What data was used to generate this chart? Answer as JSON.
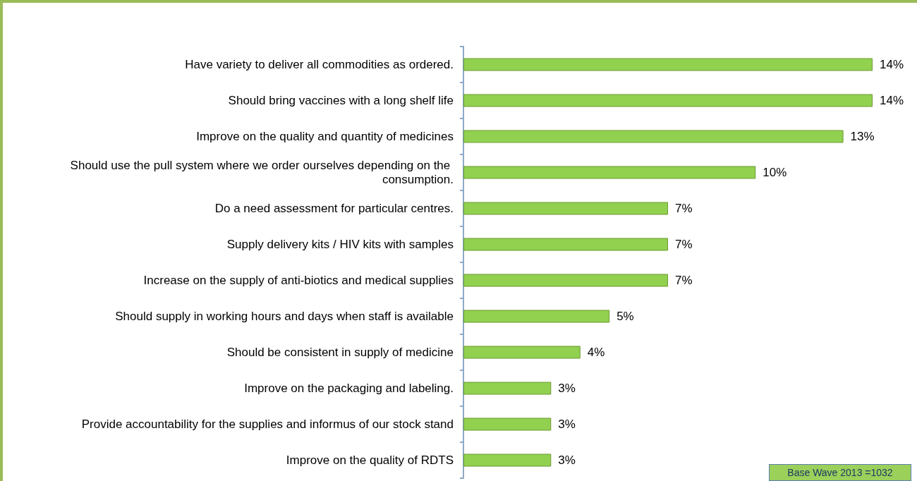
{
  "chart_data": {
    "type": "bar",
    "orientation": "horizontal",
    "categories": [
      "Have variety to deliver all commodities as ordered.",
      "Should bring vaccines with a long shelf life",
      "Improve on the quality and quantity of medicines",
      "Should use the pull system where we order ourselves depending on the consumption.",
      "Do a need assessment for particular centres.",
      "Supply delivery kits / HIV kits with samples",
      "Increase on the supply of anti-biotics and medical supplies",
      "Should supply in working hours and days when staff is available",
      "Should be consistent in supply of medicine",
      "Improve on the packaging and labeling.",
      "Provide accountability for the supplies and informus of our stock stand",
      "Improve on the quality of RDTS"
    ],
    "values": [
      14,
      14,
      13,
      10,
      7,
      7,
      7,
      5,
      4,
      3,
      3,
      3
    ],
    "value_labels": [
      "14%",
      "14%",
      "13%",
      "10%",
      "7%",
      "7%",
      "7%",
      "5%",
      "4%",
      "3%",
      "3%",
      "3%"
    ],
    "color": "#92d050",
    "grid": false,
    "annotations": [
      "Base Wave 2013 =1032"
    ]
  }
}
